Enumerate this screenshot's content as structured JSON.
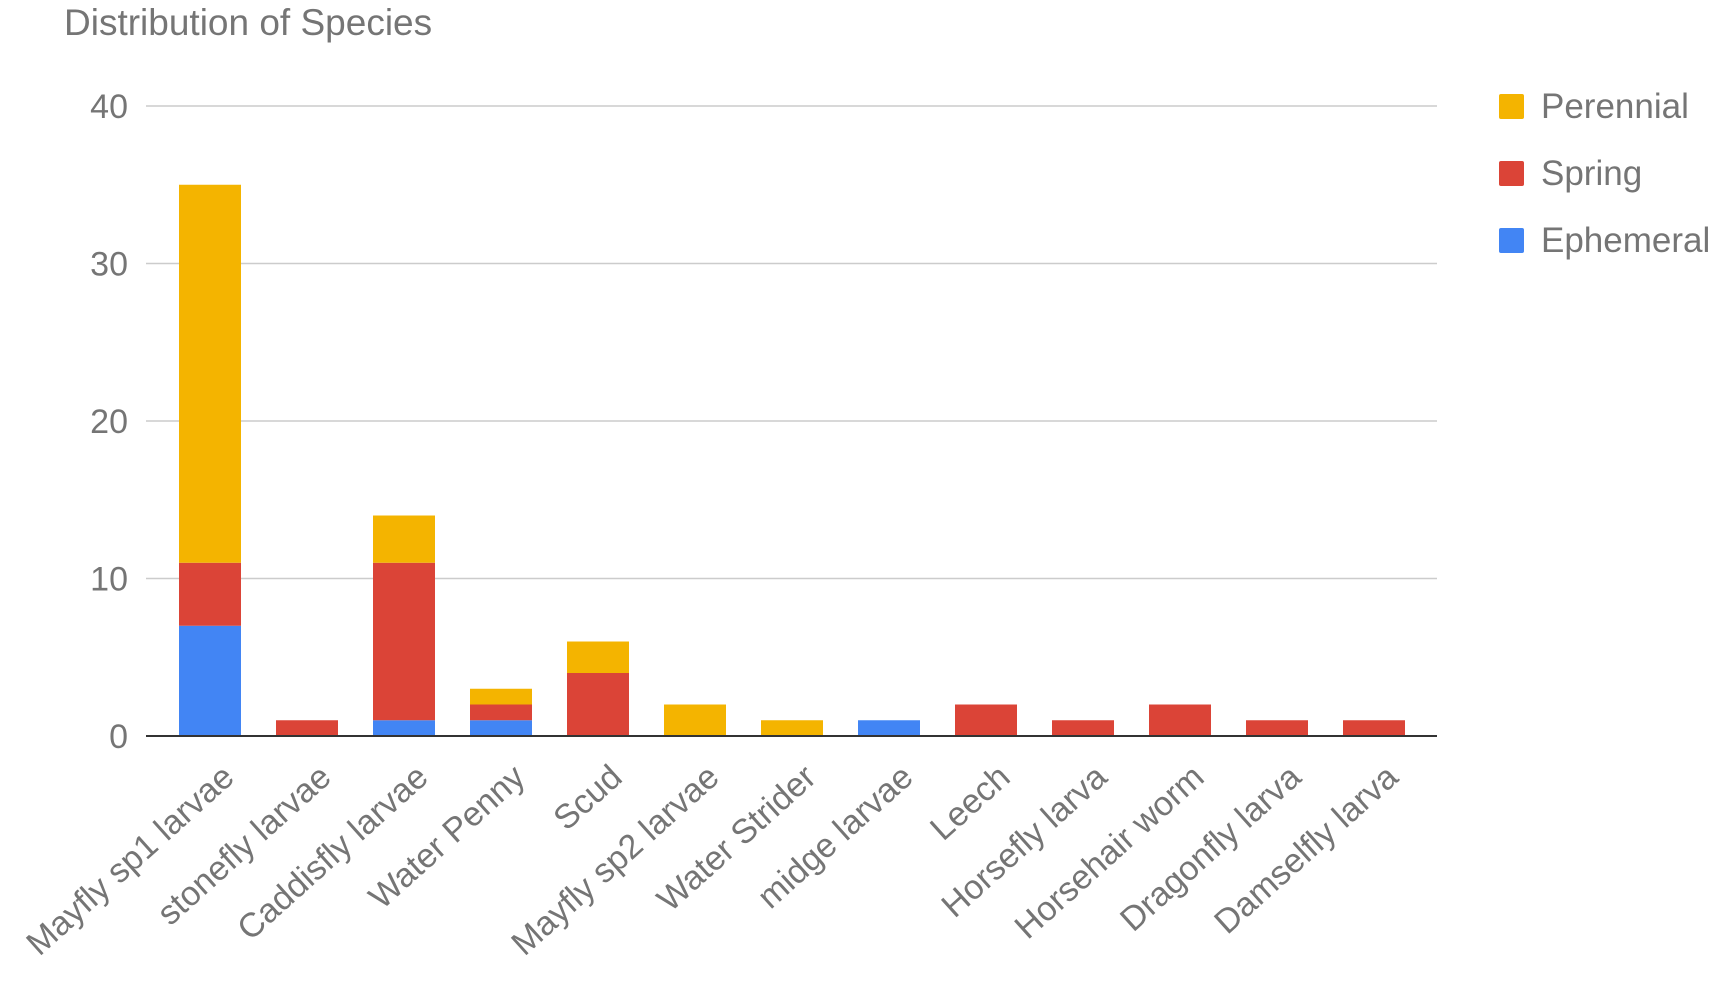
{
  "chart_data": {
    "type": "bar",
    "stacked": true,
    "title": "Distribution of Species",
    "xlabel": "",
    "ylabel": "",
    "ylim": [
      0,
      40
    ],
    "yticks": [
      0,
      10,
      20,
      30,
      40
    ],
    "grid": true,
    "legend_position": "right",
    "categories": [
      "Mayfly sp1 larvae",
      "stonefly larvae",
      "Caddisfly larvae",
      "Water Penny",
      "Scud",
      "Mayfly sp2 larvae",
      "Water Strider",
      "midge larvae",
      "Leech",
      "Horsefly larva",
      "Horsehair worm",
      "Dragonfly larva",
      "Damselfly larva"
    ],
    "series": [
      {
        "name": "Ephemeral",
        "color": "#4285F4",
        "values": [
          7,
          0,
          1,
          1,
          0,
          0,
          0,
          1,
          0,
          0,
          0,
          0,
          0
        ]
      },
      {
        "name": "Spring",
        "color": "#DB4437",
        "values": [
          4,
          1,
          10,
          1,
          4,
          0,
          0,
          0,
          2,
          1,
          2,
          1,
          1
        ]
      },
      {
        "name": "Perennial",
        "color": "#F4B400",
        "values": [
          24,
          0,
          3,
          1,
          2,
          2,
          1,
          0,
          0,
          0,
          0,
          0,
          0
        ]
      }
    ],
    "legend_order": [
      "Perennial",
      "Spring",
      "Ephemeral"
    ]
  }
}
